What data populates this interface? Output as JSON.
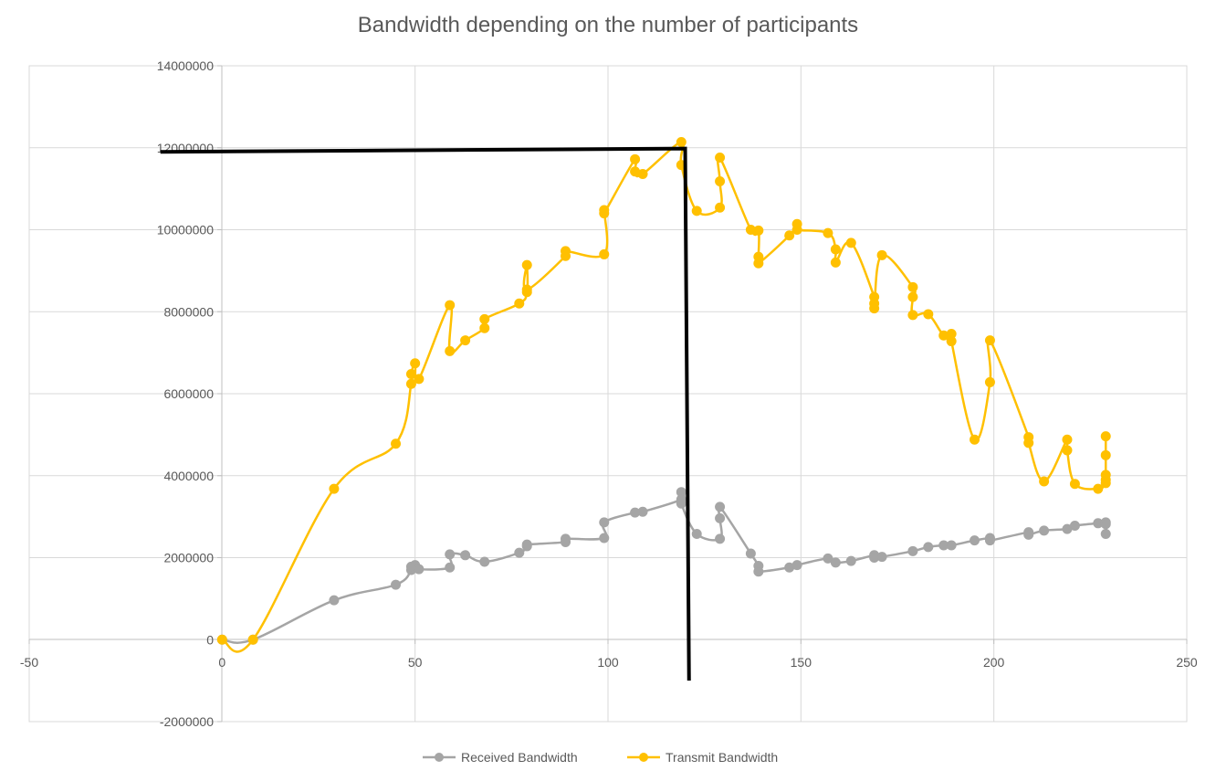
{
  "chart_data": {
    "type": "scatter",
    "title": "Bandwidth depending on the number of participants",
    "xlabel": "",
    "ylabel": "",
    "xlim": [
      -50,
      250
    ],
    "ylim": [
      -2000000,
      14000000
    ],
    "x_ticks": [
      -50,
      0,
      50,
      100,
      150,
      200,
      250
    ],
    "y_ticks": [
      -2000000,
      0,
      2000000,
      4000000,
      6000000,
      8000000,
      10000000,
      12000000,
      14000000
    ],
    "x_tick_labels": [
      "-50",
      "0",
      "50",
      "100",
      "150",
      "200",
      "250"
    ],
    "y_tick_labels": [
      "-2000000",
      "0",
      "2000000",
      "4000000",
      "6000000",
      "8000000",
      "10000000",
      "12000000",
      "14000000"
    ],
    "grid": true,
    "legend_position": "bottom",
    "series": [
      {
        "name": "Received Bandwidth",
        "color": "#A5A5A5",
        "points": [
          [
            0,
            0
          ],
          [
            8,
            0
          ],
          [
            29,
            960000
          ],
          [
            45,
            1340000
          ],
          [
            49,
            1700000
          ],
          [
            49,
            1780000
          ],
          [
            50,
            1820000
          ],
          [
            51,
            1720000
          ],
          [
            59,
            1760000
          ],
          [
            59,
            2080000
          ],
          [
            63,
            2060000
          ],
          [
            68,
            1900000
          ],
          [
            77,
            2120000
          ],
          [
            79,
            2280000
          ],
          [
            79,
            2320000
          ],
          [
            89,
            2380000
          ],
          [
            89,
            2460000
          ],
          [
            99,
            2480000
          ],
          [
            99,
            2860000
          ],
          [
            107,
            3100000
          ],
          [
            109,
            3120000
          ],
          [
            119,
            3420000
          ],
          [
            119,
            3600000
          ],
          [
            119,
            3320000
          ],
          [
            123,
            2580000
          ],
          [
            129,
            2460000
          ],
          [
            129,
            2960000
          ],
          [
            129,
            3240000
          ],
          [
            137,
            2100000
          ],
          [
            139,
            1800000
          ],
          [
            139,
            1660000
          ],
          [
            147,
            1760000
          ],
          [
            149,
            1820000
          ],
          [
            157,
            1980000
          ],
          [
            159,
            1880000
          ],
          [
            163,
            1920000
          ],
          [
            169,
            2060000
          ],
          [
            169,
            2000000
          ],
          [
            171,
            2020000
          ],
          [
            179,
            2160000
          ],
          [
            183,
            2260000
          ],
          [
            187,
            2300000
          ],
          [
            189,
            2300000
          ],
          [
            195,
            2420000
          ],
          [
            199,
            2480000
          ],
          [
            199,
            2420000
          ],
          [
            209,
            2620000
          ],
          [
            209,
            2560000
          ],
          [
            213,
            2660000
          ],
          [
            219,
            2700000
          ],
          [
            221,
            2780000
          ],
          [
            227,
            2840000
          ],
          [
            229,
            2860000
          ],
          [
            229,
            2580000
          ],
          [
            229,
            2820000
          ]
        ]
      },
      {
        "name": "Transmit Bandwidth",
        "color": "#FFC000",
        "points": [
          [
            0,
            0
          ],
          [
            8,
            0
          ],
          [
            29,
            3680000
          ],
          [
            45,
            4780000
          ],
          [
            49,
            6240000
          ],
          [
            49,
            6480000
          ],
          [
            50,
            6740000
          ],
          [
            51,
            6360000
          ],
          [
            59,
            8160000
          ],
          [
            59,
            7040000
          ],
          [
            63,
            7300000
          ],
          [
            68,
            7600000
          ],
          [
            68,
            7820000
          ],
          [
            77,
            8200000
          ],
          [
            79,
            8480000
          ],
          [
            79,
            9140000
          ],
          [
            79,
            8540000
          ],
          [
            89,
            9360000
          ],
          [
            89,
            9480000
          ],
          [
            99,
            9400000
          ],
          [
            99,
            10480000
          ],
          [
            99,
            10400000
          ],
          [
            107,
            11720000
          ],
          [
            107,
            11420000
          ],
          [
            109,
            11360000
          ],
          [
            119,
            12140000
          ],
          [
            119,
            11580000
          ],
          [
            123,
            10460000
          ],
          [
            129,
            10540000
          ],
          [
            129,
            11180000
          ],
          [
            129,
            11760000
          ],
          [
            137,
            10000000
          ],
          [
            139,
            9980000
          ],
          [
            139,
            9340000
          ],
          [
            139,
            9180000
          ],
          [
            147,
            9860000
          ],
          [
            149,
            10140000
          ],
          [
            149,
            10000000
          ],
          [
            157,
            9920000
          ],
          [
            159,
            9520000
          ],
          [
            159,
            9200000
          ],
          [
            163,
            9680000
          ],
          [
            169,
            8360000
          ],
          [
            169,
            8200000
          ],
          [
            169,
            8080000
          ],
          [
            171,
            9380000
          ],
          [
            179,
            8600000
          ],
          [
            179,
            8360000
          ],
          [
            179,
            7920000
          ],
          [
            183,
            7940000
          ],
          [
            187,
            7420000
          ],
          [
            189,
            7460000
          ],
          [
            189,
            7280000
          ],
          [
            195,
            4880000
          ],
          [
            199,
            6280000
          ],
          [
            199,
            7300000
          ],
          [
            209,
            4940000
          ],
          [
            209,
            4800000
          ],
          [
            213,
            3860000
          ],
          [
            219,
            4880000
          ],
          [
            219,
            4620000
          ],
          [
            221,
            3800000
          ],
          [
            227,
            3680000
          ],
          [
            229,
            3820000
          ],
          [
            229,
            4020000
          ],
          [
            229,
            4500000
          ],
          [
            229,
            4960000
          ],
          [
            229,
            3900000
          ]
        ]
      }
    ],
    "annotations": [
      {
        "type": "polyline",
        "color": "#000000",
        "points": [
          [
            -16,
            11900000
          ],
          [
            120,
            11980000
          ],
          [
            121,
            -1000000
          ]
        ]
      }
    ]
  }
}
